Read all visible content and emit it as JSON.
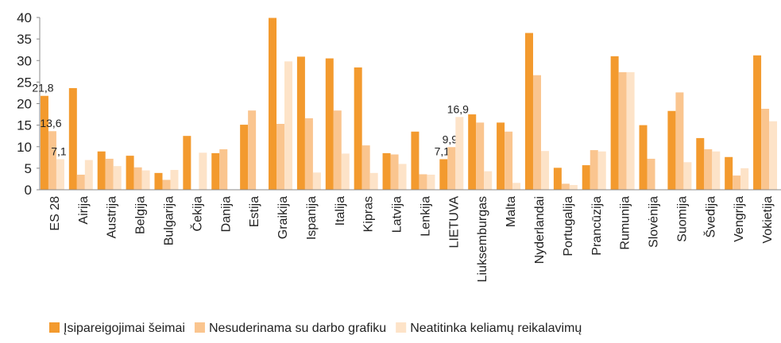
{
  "chart_data": {
    "type": "bar",
    "categories": [
      "ES 28",
      "Airija",
      "Austrija",
      "Belgija",
      "Bulgarija",
      "Čekija",
      "Danija",
      "Estija",
      "Graikija",
      "Ispanija",
      "Italija",
      "Kipras",
      "Latvija",
      "Lenkija",
      "LIETUVA",
      "Liuksemburgas",
      "Malta",
      "Nyderlandai",
      "Portugalija",
      "Prancūzija",
      "Rumunija",
      "Slovėnija",
      "Suomija",
      "Švedija",
      "Vengrija",
      "Vokietija"
    ],
    "series": [
      {
        "name": "Įsipareigojimai šeimai",
        "color": "#f39a2e",
        "values": [
          21.8,
          23.6,
          8.9,
          7.9,
          3.9,
          12.5,
          8.5,
          15.1,
          39.9,
          30.9,
          30.5,
          28.4,
          8.5,
          13.5,
          7.1,
          17.5,
          15.6,
          36.4,
          5.1,
          5.7,
          31.0,
          15.0,
          18.3,
          12.0,
          7.6,
          31.2
        ],
        "value_labels": [
          "21,8",
          null,
          null,
          null,
          null,
          null,
          null,
          null,
          null,
          null,
          null,
          null,
          null,
          null,
          "7,1",
          null,
          null,
          null,
          null,
          null,
          null,
          null,
          null,
          null,
          null,
          null
        ]
      },
      {
        "name": "Nesuderinama su darbo grafiku",
        "color": "#fac58f",
        "values": [
          13.6,
          3.5,
          7.2,
          5.2,
          2.3,
          0,
          9.4,
          18.4,
          15.3,
          16.6,
          18.4,
          10.3,
          8.2,
          3.6,
          9.9,
          15.6,
          13.5,
          26.6,
          1.4,
          9.2,
          27.3,
          7.2,
          22.6,
          9.4,
          3.3,
          18.8
        ],
        "value_labels": [
          "13,6",
          null,
          null,
          null,
          null,
          null,
          null,
          null,
          null,
          null,
          null,
          null,
          null,
          null,
          "9,9",
          null,
          null,
          null,
          null,
          null,
          null,
          null,
          null,
          null,
          null,
          null
        ]
      },
      {
        "name": "Neatitinka keliamų reikalavimų",
        "color": "#fde3c8",
        "values": [
          7.1,
          6.9,
          5.5,
          4.5,
          4.6,
          8.6,
          0,
          0,
          29.8,
          4.0,
          8.4,
          3.9,
          6.0,
          3.5,
          16.9,
          4.3,
          1.6,
          9.0,
          1.1,
          8.9,
          27.3,
          0,
          6.4,
          8.9,
          5.0,
          15.9
        ],
        "value_labels": [
          "7,1",
          null,
          null,
          null,
          null,
          null,
          null,
          null,
          null,
          null,
          null,
          null,
          null,
          null,
          "16,9",
          null,
          null,
          null,
          null,
          null,
          null,
          null,
          null,
          null,
          null,
          null
        ]
      }
    ],
    "ylim": [
      0,
      40
    ],
    "yticks": [
      0,
      5,
      10,
      15,
      20,
      25,
      30,
      35,
      40
    ],
    "grid": false,
    "legend": "bottom"
  }
}
